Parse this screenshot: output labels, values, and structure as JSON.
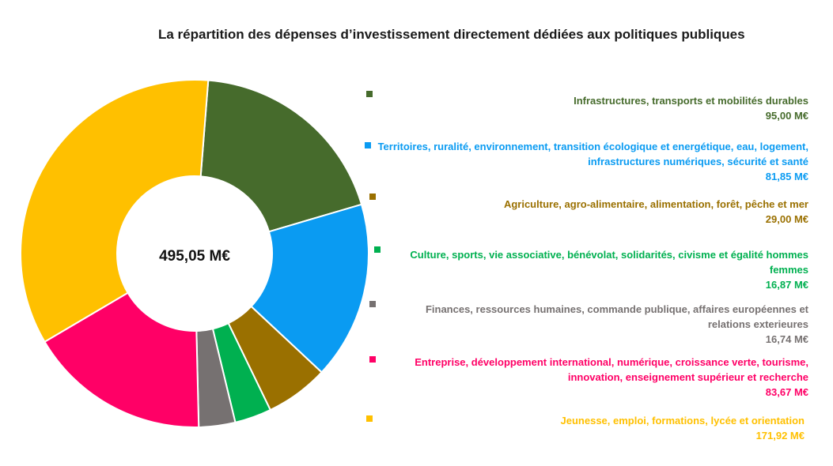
{
  "title": "La répartition des dépenses d’investissement directement dédiées aux politiques publiques",
  "chart_data": {
    "type": "pie",
    "donut": true,
    "center_label": "495,05 M€",
    "total": 495.05,
    "unit": "M€",
    "legend_position": "right",
    "segments": [
      {
        "label": "Infrastructures, transports et mobilités durables",
        "value": 95.0,
        "value_label": "95,00 M€",
        "color": "#466b2c"
      },
      {
        "label": "Territoires, ruralité, environnement, transition écologique et energétique, eau, logement, infrastructures numériques, sécurité et santé",
        "value": 81.85,
        "value_label": "81,85 M€",
        "color": "#0a9bf2"
      },
      {
        "label": "Agriculture, agro-alimentaire, alimentation, forêt, pêche et mer",
        "value": 29.0,
        "value_label": "29,00 M€",
        "color": "#9a7000"
      },
      {
        "label": "Culture, sports, vie associative, bénévolat, solidarités, civisme et égalité hommes femmes",
        "value": 16.87,
        "value_label": "16,87 M€",
        "color": "#00b050"
      },
      {
        "label": "Finances, ressources humaines, commande publique, affaires européennes et relations exterieures",
        "value": 16.74,
        "value_label": "16,74 M€",
        "color": "#767171"
      },
      {
        "label": "Entreprise, développement international, numérique, croissance verte, tourisme, innovation, enseignement supérieur et recherche",
        "value": 83.67,
        "value_label": "83,67 M€",
        "color": "#ff0066"
      },
      {
        "label": "Jeunesse, emploi, formations, lycée et orientation",
        "value": 171.92,
        "value_label": "171,92 M€",
        "color": "#ffc000"
      }
    ]
  }
}
